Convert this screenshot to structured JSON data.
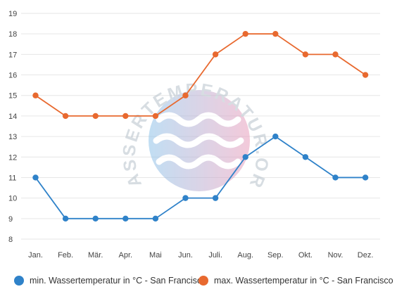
{
  "watermark": {
    "text": "WASSERTEMPERATUR.ORG"
  },
  "colors": {
    "min": "#2f82c9",
    "max": "#e8692f",
    "grid": "#e6e6e6",
    "axis_text": "#444444"
  },
  "chart_data": {
    "type": "line",
    "categories": [
      "Jan.",
      "Feb.",
      "Mär.",
      "Apr.",
      "Mai",
      "Jun.",
      "Juli.",
      "Aug.",
      "Sep.",
      "Okt.",
      "Nov.",
      "Dez."
    ],
    "series": [
      {
        "name": "min. Wassertemperatur in °C - San Francisco",
        "color": "#2f82c9",
        "values": [
          11,
          9,
          9,
          9,
          9,
          10,
          10,
          12,
          13,
          12,
          11,
          11
        ]
      },
      {
        "name": "max. Wassertemperatur in °C - San Francisco",
        "color": "#e8692f",
        "values": [
          15,
          14,
          14,
          14,
          14,
          15,
          17,
          18,
          18,
          17,
          17,
          16
        ]
      }
    ],
    "yticks": [
      "8",
      "9",
      "10",
      "11",
      "12",
      "13",
      "14",
      "15",
      "16",
      "17",
      "18",
      "19"
    ],
    "ylim": [
      8,
      19
    ],
    "xlabel": "",
    "ylabel": "",
    "grid": true,
    "legend_position": "bottom"
  }
}
